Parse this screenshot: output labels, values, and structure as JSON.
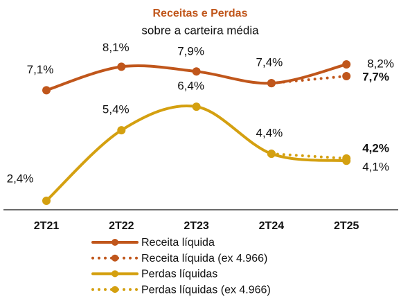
{
  "chart_data": {
    "type": "line",
    "title": "Receitas e Perdas",
    "subtitle": "sobre a carteira média",
    "categories": [
      "2T21",
      "2T22",
      "2T23",
      "2T24",
      "2T25"
    ],
    "series": [
      {
        "name": "Receita líquida",
        "color": "#c0561b",
        "dash": false,
        "values": [
          7.1,
          8.1,
          7.9,
          7.4,
          8.2
        ],
        "value_labels": [
          "7,1%",
          "8,1%",
          "7,9%",
          "7,4%",
          "8,2%"
        ]
      },
      {
        "name": "Receita líquida (ex 4.966)",
        "color": "#c0561b",
        "dash": true,
        "values": [
          null,
          null,
          null,
          7.4,
          7.7
        ],
        "value_labels": [
          null,
          null,
          null,
          null,
          "7,7%"
        ]
      },
      {
        "name": "Perdas líquidas",
        "color": "#d4a010",
        "dash": false,
        "values": [
          2.4,
          5.4,
          6.4,
          4.4,
          4.1
        ],
        "value_labels": [
          "2,4%",
          "5,4%",
          "6,4%",
          "4,4%",
          "4,1%"
        ]
      },
      {
        "name": "Perdas líquidas (ex 4.966)",
        "color": "#d4a010",
        "dash": true,
        "values": [
          null,
          null,
          null,
          4.4,
          4.2
        ],
        "value_labels": [
          null,
          null,
          null,
          null,
          "4,2%"
        ]
      }
    ]
  }
}
